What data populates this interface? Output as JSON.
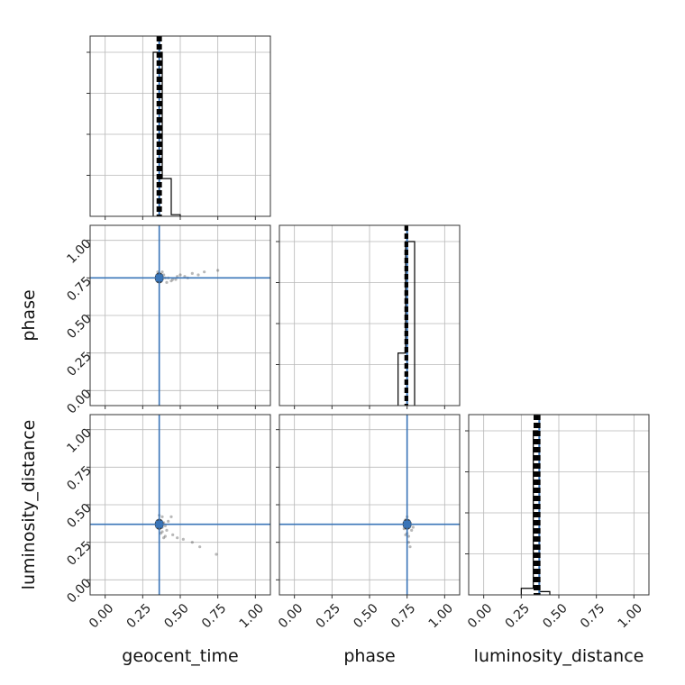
{
  "chart_data": {
    "type": "corner",
    "parameters": [
      "geocent_time",
      "phase",
      "luminosity_distance"
    ],
    "range": [
      -0.1,
      1.1
    ],
    "ticks": [
      0.0,
      0.25,
      0.5,
      0.75,
      1.0
    ],
    "tick_labels": [
      "0.00",
      "0.25",
      "0.50",
      "0.75",
      "1.00"
    ],
    "truths": {
      "geocent_time": 0.36,
      "phase": 0.75,
      "luminosity_distance": 0.37
    },
    "truth_color": "#3a75b8",
    "hist_color": "#000000",
    "grid": true,
    "histograms": [
      {
        "parameter": "geocent_time",
        "bins": [
          {
            "x0": 0.32,
            "x1": 0.38,
            "height": 1.0
          },
          {
            "x0": 0.38,
            "x1": 0.44,
            "height": 0.23
          },
          {
            "x0": 0.44,
            "x1": 0.5,
            "height": 0.01
          }
        ],
        "quantiles": [
          0.35,
          0.36,
          0.37
        ]
      },
      {
        "parameter": "phase",
        "bins": [
          {
            "x0": 0.69,
            "x1": 0.74,
            "height": 0.32
          },
          {
            "x0": 0.74,
            "x1": 0.8,
            "height": 1.0
          }
        ],
        "quantiles": [
          0.74,
          0.745,
          0.75
        ]
      },
      {
        "parameter": "luminosity_distance",
        "bins": [
          {
            "x0": 0.25,
            "x1": 0.33,
            "height": 0.04
          },
          {
            "x0": 0.33,
            "x1": 0.37,
            "height": 1.0
          },
          {
            "x0": 0.37,
            "x1": 0.44,
            "height": 0.02
          }
        ],
        "quantiles": [
          0.34,
          0.355,
          0.37
        ]
      }
    ],
    "scatter_panels": [
      {
        "x_param": "geocent_time",
        "y_param": "phase",
        "points": [
          [
            0.35,
            0.77
          ],
          [
            0.36,
            0.78
          ],
          [
            0.37,
            0.76
          ],
          [
            0.34,
            0.75
          ],
          [
            0.38,
            0.74
          ],
          [
            0.36,
            0.73
          ],
          [
            0.39,
            0.77
          ],
          [
            0.35,
            0.79
          ],
          [
            0.37,
            0.74
          ],
          [
            0.4,
            0.75
          ],
          [
            0.42,
            0.75
          ],
          [
            0.45,
            0.74
          ],
          [
            0.48,
            0.76
          ],
          [
            0.5,
            0.77
          ],
          [
            0.53,
            0.76
          ],
          [
            0.58,
            0.78
          ],
          [
            0.62,
            0.77
          ],
          [
            0.66,
            0.79
          ],
          [
            0.75,
            0.8
          ],
          [
            0.44,
            0.73
          ],
          [
            0.41,
            0.72
          ],
          [
            0.47,
            0.74
          ],
          [
            0.55,
            0.75
          ],
          [
            0.38,
            0.79
          ]
        ]
      },
      {
        "x_param": "geocent_time",
        "y_param": "luminosity_distance",
        "points": [
          [
            0.35,
            0.36
          ],
          [
            0.36,
            0.34
          ],
          [
            0.37,
            0.37
          ],
          [
            0.38,
            0.32
          ],
          [
            0.39,
            0.38
          ],
          [
            0.37,
            0.31
          ],
          [
            0.4,
            0.36
          ],
          [
            0.36,
            0.4
          ],
          [
            0.38,
            0.42
          ],
          [
            0.41,
            0.33
          ],
          [
            0.39,
            0.28
          ],
          [
            0.42,
            0.39
          ],
          [
            0.45,
            0.3
          ],
          [
            0.48,
            0.28
          ],
          [
            0.52,
            0.27
          ],
          [
            0.58,
            0.25
          ],
          [
            0.63,
            0.22
          ],
          [
            0.74,
            0.17
          ],
          [
            0.44,
            0.42
          ],
          [
            0.36,
            0.43
          ],
          [
            0.4,
            0.29
          ],
          [
            0.38,
            0.35
          ]
        ]
      },
      {
        "x_param": "phase",
        "y_param": "luminosity_distance",
        "points": [
          [
            0.74,
            0.36
          ],
          [
            0.75,
            0.35
          ],
          [
            0.76,
            0.38
          ],
          [
            0.73,
            0.34
          ],
          [
            0.75,
            0.31
          ],
          [
            0.76,
            0.29
          ],
          [
            0.74,
            0.4
          ],
          [
            0.77,
            0.37
          ],
          [
            0.78,
            0.33
          ],
          [
            0.76,
            0.25
          ],
          [
            0.77,
            0.22
          ],
          [
            0.75,
            0.42
          ],
          [
            0.73,
            0.38
          ],
          [
            0.79,
            0.35
          ],
          [
            0.74,
            0.3
          ]
        ]
      }
    ],
    "xlabels": [
      "geocent_time",
      "phase",
      "luminosity_distance"
    ],
    "ylabels": [
      "",
      "phase",
      "luminosity_distance"
    ]
  }
}
